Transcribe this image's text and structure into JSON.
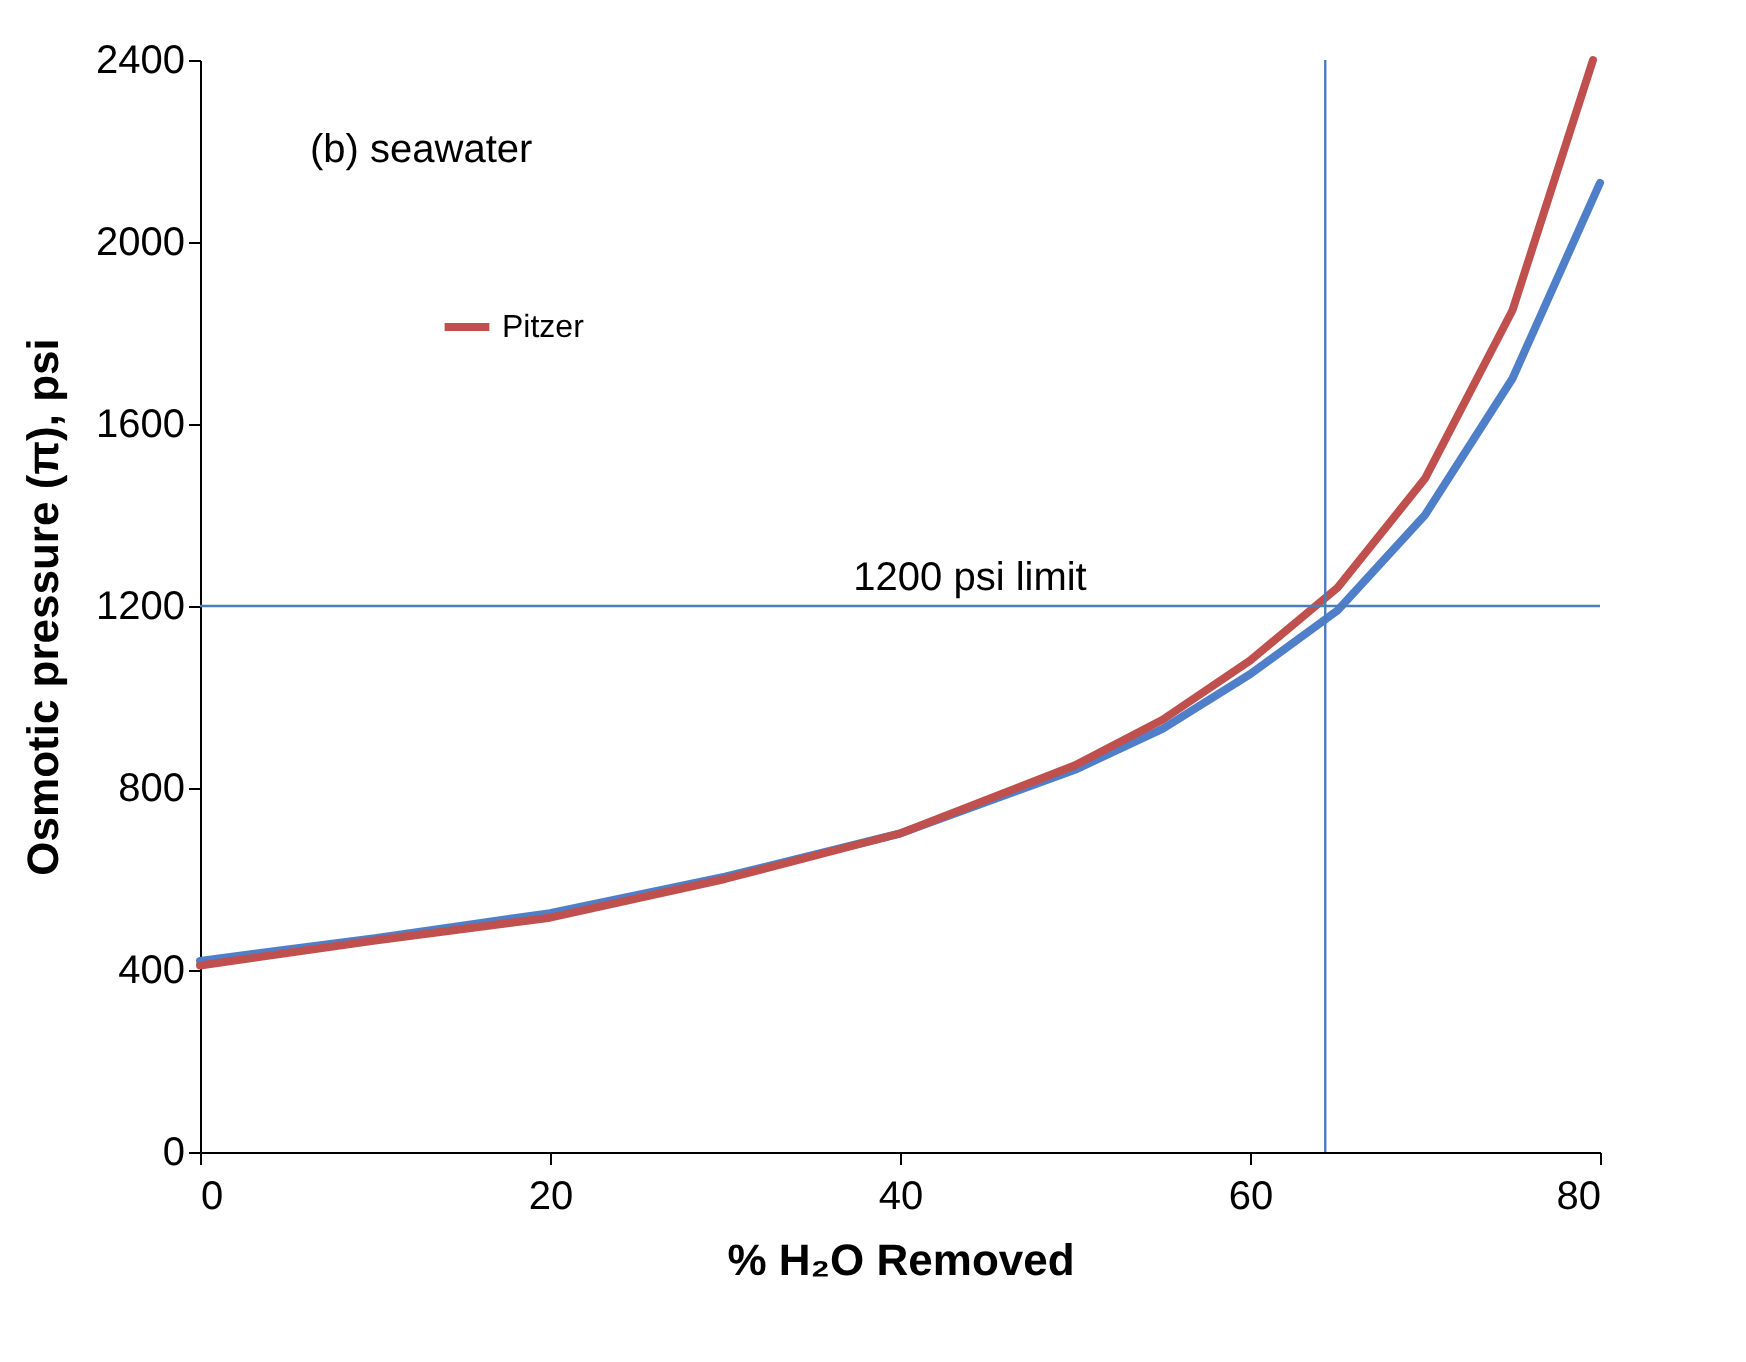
{
  "chart_data": {
    "type": "line",
    "xlabel": "% H₂O Removed",
    "ylabel": "Osmotic pressure (π), psi",
    "annotations": [
      "(b)  seawater"
    ],
    "xlim": [
      0,
      80
    ],
    "xticks": [
      0,
      20,
      40,
      60,
      80
    ],
    "ylim": [
      0,
      2400
    ],
    "yticks": [
      0,
      400,
      800,
      1200,
      1600,
      2000,
      2400
    ],
    "grid": false,
    "legend": "top left",
    "marker": "none",
    "line_style": "solid",
    "ref_lines": [
      {
        "axis": "y",
        "value": 1200,
        "label": "1200 psi limit",
        "color": "#4a7ebb"
      },
      {
        "axis": "x",
        "value": 64.3,
        "color": "#4a7ebb"
      }
    ],
    "series": [
      {
        "color": "#4f7fc8",
        "x": [
          0,
          10,
          20,
          30,
          40,
          50,
          55,
          60,
          65,
          70,
          75,
          80
        ],
        "values": [
          420,
          470,
          525,
          605,
          700,
          840,
          930,
          1050,
          1190,
          1400,
          1700,
          2130
        ]
      },
      {
        "name": "Pitzer",
        "color": "#c0504d",
        "x": [
          0,
          10,
          20,
          30,
          40,
          50,
          55,
          60,
          65,
          70,
          75,
          79.6
        ],
        "values": [
          410,
          465,
          515,
          600,
          700,
          850,
          950,
          1080,
          1240,
          1480,
          1850,
          2400
        ]
      }
    ]
  }
}
